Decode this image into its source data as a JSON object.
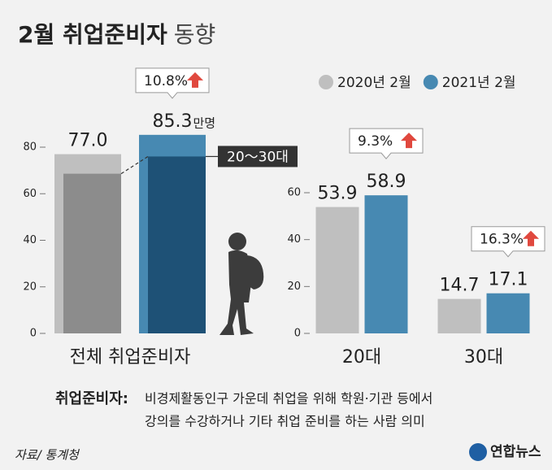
{
  "title": "2월 취업준비자",
  "title_suffix": "동향",
  "chart_data": [
    {
      "type": "bar",
      "categories": [
        "전체 취업준비자"
      ],
      "series": [
        {
          "color": "#bfbfbf",
          "values": [
            77.0
          ],
          "value_labels": [
            "77.0"
          ]
        },
        {
          "color": "#4789b2",
          "values": [
            85.3
          ]
        }
      ],
      "unit": "만명",
      "annotations": [
        "10.8%"
      ],
      "inner": {
        "name": "20～30대",
        "colors": [
          "#8c8c8c",
          "#1e5176"
        ],
        "values": [
          68.6,
          76.0
        ]
      },
      "ylim": [
        0,
        80
      ],
      "yticks": [
        0,
        20,
        40,
        60,
        80
      ]
    },
    {
      "type": "bar",
      "categories": [
        "20대",
        "30대"
      ],
      "series": [
        {
          "name": "2020년 2월",
          "color": "#bfbfbf",
          "values": [
            53.9,
            14.7
          ]
        },
        {
          "name": "2021년 2월",
          "color": "#4789b2",
          "values": [
            58.9,
            17.1
          ]
        }
      ],
      "annotations": [
        "9.3%",
        "16.3%"
      ],
      "ylim": [
        0,
        60
      ],
      "yticks": [
        0,
        20,
        40,
        60
      ]
    }
  ],
  "footnote": {
    "term": "취업준비자:",
    "definition": [
      "비경제활동인구 가운데 취업을 위해 학원·기관 등에서",
      "강의를 수강하거나 기타 취업 준비를 하는 사람 의미"
    ]
  },
  "source": "자료/ 통계청",
  "logo": "연합뉴스"
}
